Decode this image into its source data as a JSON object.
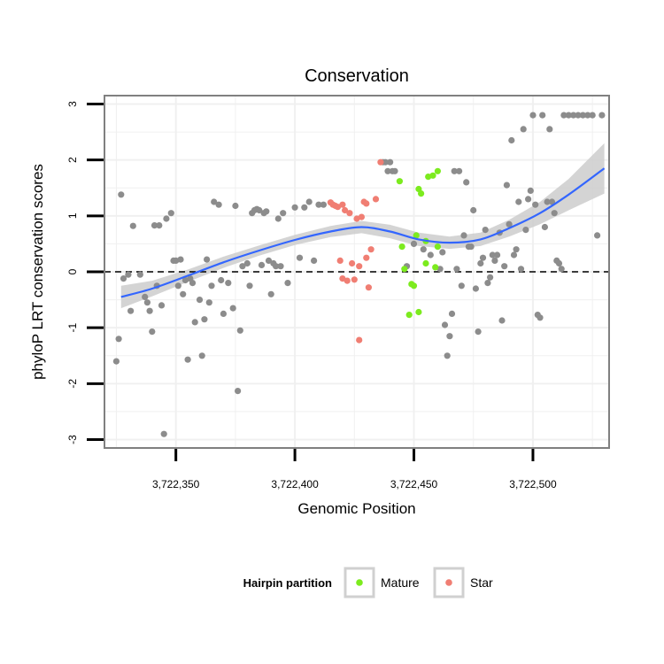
{
  "chart_data": {
    "type": "scatter",
    "title": "Conservation",
    "xlabel": "Genomic Position",
    "ylabel": "phyloP LRT conservation scores",
    "xlim": [
      3722320,
      3722532
    ],
    "ylim": [
      -3.15,
      3.15
    ],
    "x_ticks": [
      3722350,
      3722400,
      3722450,
      3722500
    ],
    "x_tick_labels": [
      "3,722,350",
      "3,722,400",
      "3,722,450",
      "3,722,500"
    ],
    "y_ticks": [
      -3,
      -2,
      -1,
      0,
      1,
      2,
      3
    ],
    "y_tick_labels": [
      "-3",
      "-2",
      "-1",
      "0",
      "1",
      "2",
      "3"
    ],
    "reference_line": {
      "y": 0,
      "style": "dashed"
    },
    "grid": true,
    "legend": {
      "title": "Hairpin partition",
      "placement": "bottom",
      "entries": [
        {
          "label": "Mature",
          "color": "#7CEB1E"
        },
        {
          "label": "Star",
          "color": "#F07E73"
        }
      ]
    },
    "colors": {
      "other": "#8C8C8C",
      "Mature": "#7CEB1E",
      "Star": "#F07E73",
      "smooth": "#3366FF",
      "band": "#CCCCCC"
    },
    "smooth": {
      "x": [
        3722327,
        3722340,
        3722355,
        3722370,
        3722385,
        3722400,
        3722415,
        3722428,
        3722440,
        3722452,
        3722465,
        3722478,
        3722490,
        3722503,
        3722515,
        3722530
      ],
      "y": [
        -0.45,
        -0.3,
        -0.07,
        0.17,
        0.38,
        0.57,
        0.72,
        0.8,
        0.72,
        0.58,
        0.52,
        0.58,
        0.78,
        1.05,
        1.38,
        1.85
      ],
      "lower": [
        -0.65,
        -0.44,
        -0.18,
        0.07,
        0.29,
        0.48,
        0.62,
        0.69,
        0.6,
        0.46,
        0.41,
        0.46,
        0.63,
        0.85,
        1.1,
        1.4
      ],
      "upper": [
        -0.25,
        -0.16,
        0.04,
        0.27,
        0.47,
        0.66,
        0.82,
        0.91,
        0.84,
        0.7,
        0.63,
        0.7,
        0.93,
        1.25,
        1.66,
        2.3
      ]
    },
    "series": [
      {
        "name": "Mature",
        "points": [
          [
            3722444,
            1.62
          ],
          [
            3722451,
            0.65
          ],
          [
            3722452,
            1.48
          ],
          [
            3722453,
            1.4
          ],
          [
            3722456,
            1.7
          ],
          [
            3722458,
            1.72
          ],
          [
            3722460,
            1.8
          ],
          [
            3722455,
            0.55
          ],
          [
            3722460,
            0.45
          ],
          [
            3722445,
            0.45
          ],
          [
            3722446,
            0.05
          ],
          [
            3722455,
            0.15
          ],
          [
            3722459,
            0.08
          ],
          [
            3722449,
            -0.22
          ],
          [
            3722450,
            -0.25
          ],
          [
            3722448,
            -0.77
          ],
          [
            3722452,
            -0.72
          ]
        ]
      },
      {
        "name": "Star",
        "points": [
          [
            3722415,
            1.24
          ],
          [
            3722416,
            1.2
          ],
          [
            3722417,
            1.18
          ],
          [
            3722418,
            1.16
          ],
          [
            3722420,
            1.2
          ],
          [
            3722421,
            1.1
          ],
          [
            3722423,
            1.05
          ],
          [
            3722426,
            0.95
          ],
          [
            3722428,
            0.98
          ],
          [
            3722429,
            1.25
          ],
          [
            3722430,
            1.22
          ],
          [
            3722434,
            1.3
          ],
          [
            3722436,
            1.96
          ],
          [
            3722419,
            0.2
          ],
          [
            3722424,
            0.15
          ],
          [
            3722427,
            0.1
          ],
          [
            3722430,
            0.25
          ],
          [
            3722432,
            0.4
          ],
          [
            3722420,
            -0.12
          ],
          [
            3722422,
            -0.16
          ],
          [
            3722425,
            -0.14
          ],
          [
            3722431,
            -0.28
          ],
          [
            3722427,
            -1.22
          ]
        ]
      },
      {
        "name": "",
        "points": [
          [
            3722325,
            -1.6
          ],
          [
            3722326,
            -1.2
          ],
          [
            3722327,
            1.38
          ],
          [
            3722328,
            -0.12
          ],
          [
            3722330,
            -0.05
          ],
          [
            3722331,
            -0.7
          ],
          [
            3722332,
            0.82
          ],
          [
            3722335,
            -0.05
          ],
          [
            3722337,
            -0.45
          ],
          [
            3722338,
            -0.55
          ],
          [
            3722339,
            -0.7
          ],
          [
            3722340,
            -1.07
          ],
          [
            3722341,
            0.83
          ],
          [
            3722342,
            -0.25
          ],
          [
            3722343,
            0.83
          ],
          [
            3722344,
            -0.6
          ],
          [
            3722345,
            -2.9
          ],
          [
            3722346,
            0.95
          ],
          [
            3722348,
            1.05
          ],
          [
            3722349,
            0.2
          ],
          [
            3722350,
            0.2
          ],
          [
            3722351,
            -0.25
          ],
          [
            3722352,
            0.22
          ],
          [
            3722353,
            -0.4
          ],
          [
            3722354,
            -0.15
          ],
          [
            3722355,
            -1.57
          ],
          [
            3722356,
            -0.12
          ],
          [
            3722357,
            -0.2
          ],
          [
            3722358,
            -0.9
          ],
          [
            3722360,
            -0.5
          ],
          [
            3722361,
            -1.5
          ],
          [
            3722362,
            -0.85
          ],
          [
            3722363,
            0.22
          ],
          [
            3722364,
            -0.55
          ],
          [
            3722365,
            -0.25
          ],
          [
            3722366,
            1.25
          ],
          [
            3722368,
            1.2
          ],
          [
            3722369,
            -0.15
          ],
          [
            3722370,
            -0.75
          ],
          [
            3722372,
            -0.2
          ],
          [
            3722374,
            -0.65
          ],
          [
            3722375,
            1.18
          ],
          [
            3722376,
            -2.13
          ],
          [
            3722377,
            -1.05
          ],
          [
            3722378,
            0.1
          ],
          [
            3722380,
            0.15
          ],
          [
            3722381,
            -0.25
          ],
          [
            3722382,
            1.05
          ],
          [
            3722383,
            1.1
          ],
          [
            3722384,
            1.12
          ],
          [
            3722385,
            1.1
          ],
          [
            3722386,
            0.12
          ],
          [
            3722387,
            1.05
          ],
          [
            3722388,
            1.08
          ],
          [
            3722389,
            0.2
          ],
          [
            3722390,
            -0.4
          ],
          [
            3722391,
            0.15
          ],
          [
            3722392,
            0.1
          ],
          [
            3722393,
            0.95
          ],
          [
            3722394,
            0.1
          ],
          [
            3722395,
            1.05
          ],
          [
            3722397,
            -0.2
          ],
          [
            3722400,
            1.15
          ],
          [
            3722402,
            0.25
          ],
          [
            3722404,
            1.15
          ],
          [
            3722406,
            1.25
          ],
          [
            3722408,
            0.2
          ],
          [
            3722410,
            1.2
          ],
          [
            3722412,
            1.2
          ],
          [
            3722437,
            1.96
          ],
          [
            3722438,
            1.96
          ],
          [
            3722439,
            1.8
          ],
          [
            3722440,
            1.96
          ],
          [
            3722441,
            1.8
          ],
          [
            3722442,
            1.8
          ],
          [
            3722447,
            0.1
          ],
          [
            3722450,
            0.5
          ],
          [
            3722454,
            0.4
          ],
          [
            3722457,
            0.3
          ],
          [
            3722461,
            0.05
          ],
          [
            3722462,
            0.35
          ],
          [
            3722463,
            -0.95
          ],
          [
            3722464,
            -1.5
          ],
          [
            3722465,
            -1.15
          ],
          [
            3722466,
            -0.75
          ],
          [
            3722467,
            1.8
          ],
          [
            3722468,
            0.05
          ],
          [
            3722469,
            1.8
          ],
          [
            3722470,
            -0.25
          ],
          [
            3722471,
            0.65
          ],
          [
            3722472,
            1.6
          ],
          [
            3722473,
            0.45
          ],
          [
            3722474,
            0.45
          ],
          [
            3722475,
            1.1
          ],
          [
            3722476,
            -0.3
          ],
          [
            3722477,
            -1.07
          ],
          [
            3722478,
            0.15
          ],
          [
            3722479,
            0.25
          ],
          [
            3722480,
            0.75
          ],
          [
            3722481,
            -0.2
          ],
          [
            3722482,
            -0.1
          ],
          [
            3722483,
            0.3
          ],
          [
            3722484,
            0.2
          ],
          [
            3722485,
            0.3
          ],
          [
            3722486,
            0.7
          ],
          [
            3722487,
            -0.87
          ],
          [
            3722488,
            0.1
          ],
          [
            3722489,
            1.55
          ],
          [
            3722490,
            0.85
          ],
          [
            3722491,
            2.35
          ],
          [
            3722492,
            0.3
          ],
          [
            3722493,
            0.4
          ],
          [
            3722494,
            1.25
          ],
          [
            3722495,
            0.05
          ],
          [
            3722496,
            2.55
          ],
          [
            3722497,
            0.75
          ],
          [
            3722498,
            1.3
          ],
          [
            3722499,
            1.45
          ],
          [
            3722500,
            2.8
          ],
          [
            3722501,
            1.2
          ],
          [
            3722502,
            -0.77
          ],
          [
            3722503,
            -0.82
          ],
          [
            3722504,
            2.8
          ],
          [
            3722505,
            0.8
          ],
          [
            3722506,
            1.25
          ],
          [
            3722507,
            2.55
          ],
          [
            3722508,
            1.25
          ],
          [
            3722509,
            1.05
          ],
          [
            3722510,
            0.2
          ],
          [
            3722511,
            0.15
          ],
          [
            3722512,
            0.05
          ],
          [
            3722513,
            2.8
          ],
          [
            3722515,
            2.8
          ],
          [
            3722517,
            2.8
          ],
          [
            3722519,
            2.8
          ],
          [
            3722521,
            2.8
          ],
          [
            3722523,
            2.8
          ],
          [
            3722525,
            2.8
          ],
          [
            3722527,
            0.65
          ],
          [
            3722529,
            2.8
          ]
        ]
      }
    ]
  }
}
